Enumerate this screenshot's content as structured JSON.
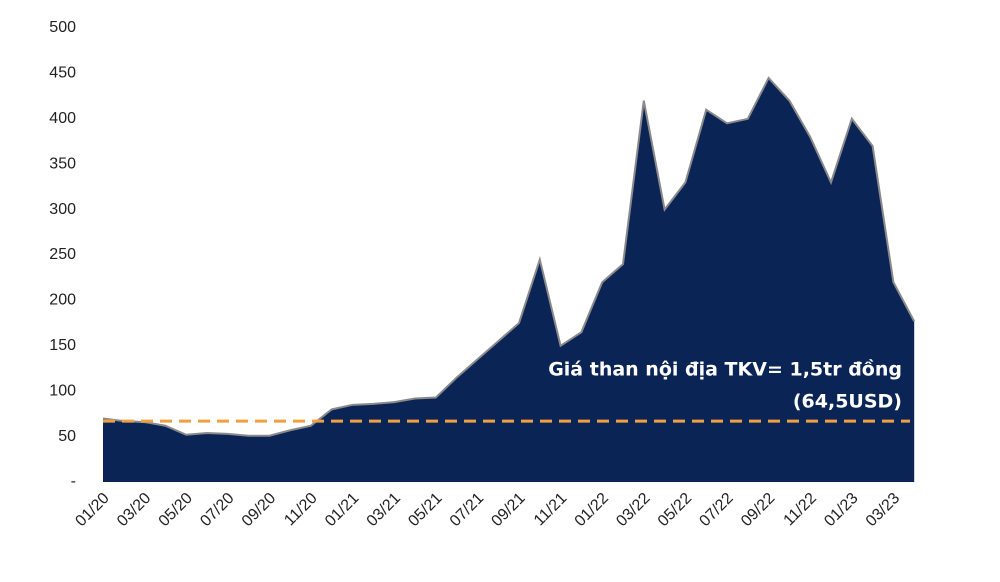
{
  "chart_data": {
    "type": "area",
    "x": [
      "01/20",
      "02/20",
      "03/20",
      "04/20",
      "05/20",
      "06/20",
      "07/20",
      "08/20",
      "09/20",
      "10/20",
      "11/20",
      "12/20",
      "01/21",
      "02/21",
      "03/21",
      "04/21",
      "05/21",
      "06/21",
      "07/21",
      "08/21",
      "09/21",
      "10/21",
      "11/21",
      "12/21",
      "01/22",
      "02/22",
      "03/22",
      "04/22",
      "05/22",
      "06/22",
      "07/22",
      "08/22",
      "09/22",
      "10/22",
      "11/22",
      "12/22",
      "01/23",
      "02/23",
      "03/23",
      "04/23"
    ],
    "values": [
      70,
      67,
      66,
      62,
      52,
      54,
      53,
      51,
      51,
      57,
      62,
      80,
      85,
      86,
      88,
      92,
      93,
      115,
      135,
      155,
      175,
      245,
      150,
      165,
      220,
      240,
      420,
      300,
      330,
      410,
      395,
      400,
      445,
      420,
      380,
      330,
      400,
      370,
      220,
      177
    ],
    "color": "#0b2456",
    "line_color": "#8a8a8a",
    "xticks": [
      "01/20",
      "03/20",
      "05/20",
      "07/20",
      "09/20",
      "11/20",
      "01/21",
      "03/21",
      "05/21",
      "07/21",
      "09/21",
      "11/21",
      "01/22",
      "03/22",
      "05/22",
      "07/22",
      "09/22",
      "11/22",
      "01/23",
      "03/23"
    ],
    "ylim": [
      0,
      500
    ],
    "yticks": [
      {
        "value": 0,
        "label": "-"
      },
      50,
      100,
      150,
      200,
      250,
      300,
      350,
      400,
      450,
      500
    ],
    "grid": false,
    "reference_line": {
      "value": 67,
      "color": "#f0a040",
      "label": [
        "Giá than nội địa TKV= 1,5tr đồng",
        "(64,5USD)"
      ]
    }
  }
}
